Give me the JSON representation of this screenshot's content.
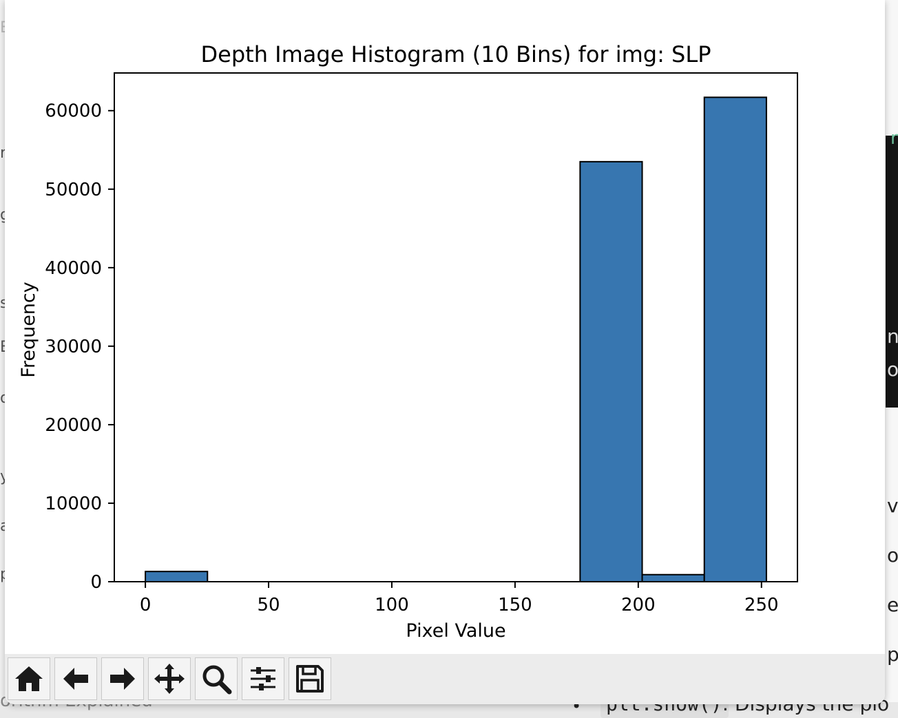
{
  "background": {
    "right_snippets": [
      "n",
      "nc",
      "ot",
      "ve",
      "og",
      "et",
      "pl"
    ],
    "left_snippets": [
      "E",
      "r",
      "g",
      "s",
      "E",
      "o",
      "y",
      "a",
      "p"
    ],
    "bottom_left_text": "orithm Explained",
    "bottom_code": "plt.show()",
    "bottom_text": ": Displays the plo"
  },
  "toolbar": {
    "buttons": [
      {
        "name": "home-button",
        "icon": "home-icon"
      },
      {
        "name": "back-button",
        "icon": "arrow-left-icon"
      },
      {
        "name": "forward-button",
        "icon": "arrow-right-icon"
      },
      {
        "name": "pan-button",
        "icon": "move-icon"
      },
      {
        "name": "zoom-button",
        "icon": "magnifier-icon"
      },
      {
        "name": "configure-subplots-button",
        "icon": "sliders-icon"
      },
      {
        "name": "save-button",
        "icon": "floppy-disk-icon"
      }
    ]
  },
  "chart_data": {
    "type": "bar",
    "title": "Depth Image Histogram (10 Bins) for img: SLP",
    "xlabel": "Pixel Value",
    "ylabel": "Frequency",
    "bin_edges": [
      0,
      25.2,
      50.4,
      75.6,
      100.8,
      126,
      151.2,
      176.4,
      201.6,
      226.8,
      252
    ],
    "values": [
      1300,
      0,
      0,
      0,
      0,
      0,
      0,
      53500,
      900,
      61700
    ],
    "xlim": [
      -12.6,
      264.6
    ],
    "ylim": [
      0,
      64800
    ],
    "xticks": [
      0,
      50,
      100,
      150,
      200,
      250
    ],
    "yticks": [
      0,
      10000,
      20000,
      30000,
      40000,
      50000,
      60000
    ],
    "bar_color": "#3776b0",
    "edge_color": "#000000",
    "grid": false
  }
}
